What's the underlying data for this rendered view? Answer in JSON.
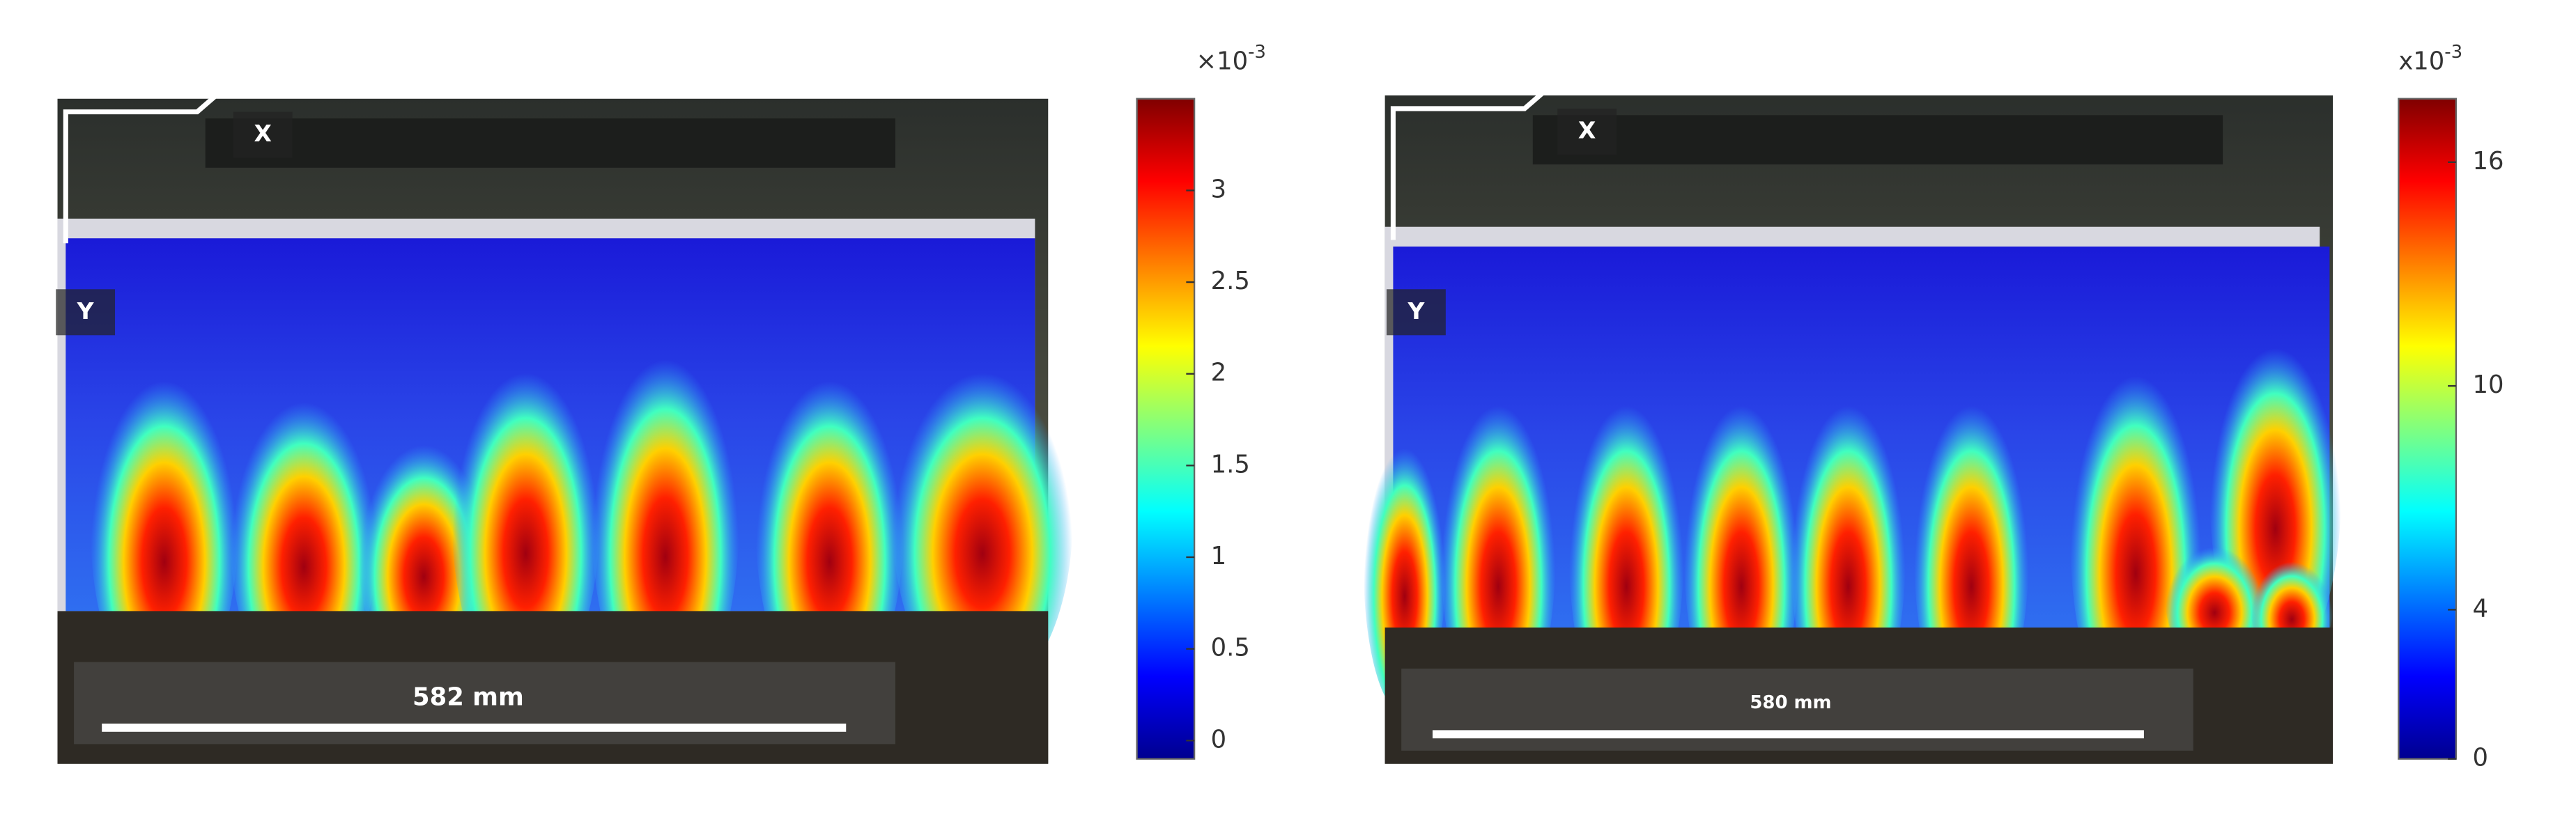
{
  "panels": [
    {
      "axis_x": "X",
      "axis_y": "Y",
      "scale_label": "582 mm",
      "colorbar": {
        "exponent_base": "×10",
        "exponent": "-3",
        "clim": [
          -0.1,
          3.5
        ],
        "ticks": [
          0,
          0.5,
          1,
          1.5,
          2,
          2.5,
          3
        ]
      }
    },
    {
      "axis_x": "X",
      "axis_y": "Y",
      "scale_label": "580 mm",
      "colorbar": {
        "exponent_base": "x10",
        "exponent": "-3",
        "clim": [
          0,
          17.7
        ],
        "ticks": [
          0,
          4,
          10,
          16
        ]
      }
    }
  ]
}
